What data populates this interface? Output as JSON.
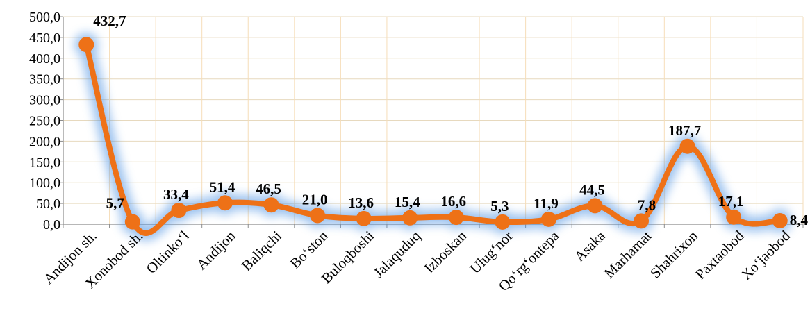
{
  "chart_data": {
    "type": "line",
    "categories": [
      "Andijon sh.",
      "Xonobod sh.",
      "Oltinko‘l",
      "Andijon",
      "Baliqchi",
      "Bo‘ston",
      "Buloqboshi",
      "Jalaquduq",
      "Izboskan",
      "Ulug‘nor",
      "Qo‘rg‘ontepa",
      "Asaka",
      "Marhamat",
      "Shahrixon",
      "Paxtaobod",
      "Xo‘jaobod"
    ],
    "values": [
      432.7,
      5.7,
      33.4,
      51.4,
      46.5,
      21.0,
      13.6,
      15.4,
      16.6,
      5.3,
      11.9,
      44.5,
      7.8,
      187.7,
      17.1,
      8.4
    ],
    "data_labels": [
      "432,7",
      "5,7",
      "33,4",
      "51,4",
      "46,5",
      "21,0",
      "13,6",
      "15,4",
      "16,6",
      "5,3",
      "11,9",
      "44,5",
      "7,8",
      "187,7",
      "17,1",
      "8,4"
    ],
    "yticks": [
      "0,0",
      "50,0",
      "100,0",
      "150,0",
      "200,0",
      "250,0",
      "300,0",
      "350,0",
      "400,0",
      "450,0",
      "500,0"
    ],
    "ylim": [
      0,
      500
    ],
    "grid": true,
    "title": "",
    "xlabel": "",
    "ylabel": "",
    "colors": {
      "line": "#EE7117",
      "marker": "#EE7117",
      "glow": "#4A90E2",
      "grid_h": "#E7D9BE",
      "grid_v": "#F6DDB8",
      "axis": "#8C8C8C"
    }
  }
}
